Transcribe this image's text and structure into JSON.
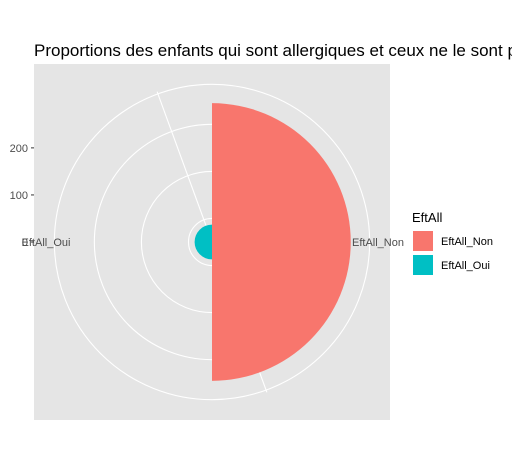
{
  "chart_data": {
    "type": "pie",
    "title": "Proportions des enfants qui sont allergiques et ceux ne le sont pas",
    "categories": [
      "EftAll_Non",
      "EftAll_Oui"
    ],
    "values": [
      295,
      37
    ],
    "colors": [
      "#F8766D",
      "#00BFC4"
    ],
    "radial_ticks": [
      "0",
      "100",
      "200"
    ],
    "radial_tick_values": [
      0,
      100,
      200
    ],
    "rlim": [
      0,
      340
    ],
    "grid": true,
    "panel_background": "#e5e5e5",
    "legend": {
      "title": "EftAll",
      "placement": "right",
      "entries": [
        "EftAll_Non",
        "EftAll_Oui"
      ]
    }
  }
}
